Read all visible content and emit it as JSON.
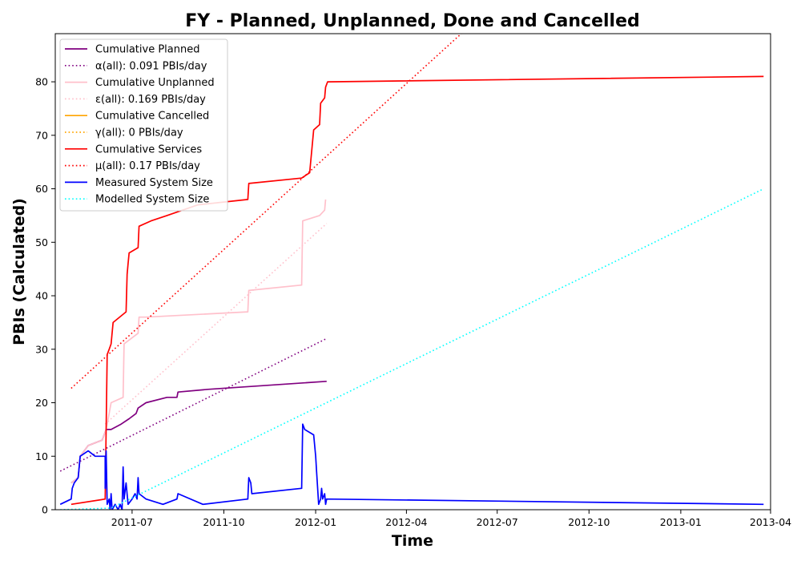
{
  "chart_data": {
    "type": "line",
    "title": "FY - Planned, Unplanned, Done  and Cancelled",
    "xlabel": "Time",
    "ylabel": "PBIs (Calculated)",
    "xlim": [
      "2011-04-15",
      "2013-04-01"
    ],
    "ylim": [
      0,
      89
    ],
    "x_ticks": [
      "2011-07-01",
      "2011-10-01",
      "2012-01-01",
      "2012-04-01",
      "2012-07-01",
      "2012-10-01",
      "2013-01-01",
      "2013-04-01"
    ],
    "x_tick_labels": [
      "2011-07",
      "2011-10",
      "2012-01",
      "2012-04",
      "2012-07",
      "2012-10",
      "2013-01",
      "2013-04"
    ],
    "y_ticks": [
      0,
      10,
      20,
      30,
      40,
      50,
      60,
      70,
      80
    ],
    "legend_position": "upper-left",
    "grid": false,
    "series": [
      {
        "name": "Cumulative Planned",
        "color": "#800080",
        "style": "solid",
        "points": [
          [
            "2011-05-01",
            5
          ],
          [
            "2011-05-08",
            6
          ],
          [
            "2011-05-10",
            10
          ],
          [
            "2011-05-14",
            11
          ],
          [
            "2011-05-18",
            12
          ],
          [
            "2011-06-01",
            13
          ],
          [
            "2011-06-05",
            15
          ],
          [
            "2011-06-10",
            15
          ],
          [
            "2011-06-20",
            16
          ],
          [
            "2011-06-28",
            17
          ],
          [
            "2011-07-05",
            18
          ],
          [
            "2011-07-07",
            19
          ],
          [
            "2011-07-15",
            20
          ],
          [
            "2011-08-05",
            21
          ],
          [
            "2011-08-15",
            21
          ],
          [
            "2011-08-16",
            22
          ],
          [
            "2011-09-15",
            22.5
          ],
          [
            "2012-01-12",
            24
          ]
        ]
      },
      {
        "name": "α(all): 0.091 PBIs/day",
        "color": "#800080",
        "style": "dotted",
        "points": [
          [
            "2011-04-20",
            7.2
          ],
          [
            "2012-01-12",
            32
          ]
        ]
      },
      {
        "name": "Cumulative Unplanned",
        "color": "#ffc0cb",
        "style": "solid",
        "points": [
          [
            "2011-05-01",
            5
          ],
          [
            "2011-05-08",
            6
          ],
          [
            "2011-05-10",
            10
          ],
          [
            "2011-05-14",
            11
          ],
          [
            "2011-05-18",
            12
          ],
          [
            "2011-06-01",
            13
          ],
          [
            "2011-06-05",
            15
          ],
          [
            "2011-06-06",
            16
          ],
          [
            "2011-06-08",
            18
          ],
          [
            "2011-06-10",
            20
          ],
          [
            "2011-06-22",
            21
          ],
          [
            "2011-06-23",
            31
          ],
          [
            "2011-07-07",
            33
          ],
          [
            "2011-07-08",
            36
          ],
          [
            "2011-07-15",
            36
          ],
          [
            "2011-10-25",
            37
          ],
          [
            "2011-10-26",
            41
          ],
          [
            "2011-12-18",
            42
          ],
          [
            "2011-12-19",
            54
          ],
          [
            "2012-01-05",
            55
          ],
          [
            "2012-01-10",
            56
          ],
          [
            "2012-01-11",
            58
          ]
        ]
      },
      {
        "name": "ε(all): 0.169 PBIs/day",
        "color": "#ffc0cb",
        "style": "dotted",
        "points": [
          [
            "2011-06-04",
            16
          ],
          [
            "2012-01-12",
            53.5
          ]
        ]
      },
      {
        "name": "Cumulative Cancelled",
        "color": "#ffa500",
        "style": "solid",
        "points": []
      },
      {
        "name": "γ(all): 0 PBIs/day",
        "color": "#ffa500",
        "style": "dotted",
        "points": []
      },
      {
        "name": "Cumulative Services",
        "color": "#ff0000",
        "style": "solid",
        "points": [
          [
            "2011-05-01",
            1
          ],
          [
            "2011-06-04",
            2
          ],
          [
            "2011-06-05",
            15
          ],
          [
            "2011-06-06",
            29
          ],
          [
            "2011-06-08",
            30
          ],
          [
            "2011-06-10",
            31
          ],
          [
            "2011-06-12",
            35
          ],
          [
            "2011-06-25",
            37
          ],
          [
            "2011-06-26",
            44
          ],
          [
            "2011-06-27",
            46
          ],
          [
            "2011-06-28",
            48
          ],
          [
            "2011-07-07",
            49
          ],
          [
            "2011-07-08",
            53
          ],
          [
            "2011-07-20",
            54
          ],
          [
            "2011-08-05",
            55
          ],
          [
            "2011-09-05",
            57
          ],
          [
            "2011-10-25",
            58
          ],
          [
            "2011-10-26",
            61
          ],
          [
            "2011-12-18",
            62
          ],
          [
            "2011-12-26",
            63
          ],
          [
            "2011-12-28",
            67
          ],
          [
            "2011-12-30",
            71
          ],
          [
            "2012-01-05",
            72
          ],
          [
            "2012-01-06",
            76
          ],
          [
            "2012-01-10",
            77
          ],
          [
            "2012-01-11",
            79
          ],
          [
            "2012-01-13",
            80
          ],
          [
            "2013-03-25",
            81
          ]
        ]
      },
      {
        "name": "μ(all): 0.17 PBIs/day",
        "color": "#ff0000",
        "style": "dotted",
        "points": [
          [
            "2011-05-01",
            22.7
          ],
          [
            "2012-05-26",
            89
          ]
        ]
      },
      {
        "name": "Measured System Size",
        "color": "#0000ff",
        "style": "solid",
        "points": [
          [
            "2011-04-20",
            1
          ],
          [
            "2011-05-01",
            2
          ],
          [
            "2011-05-02",
            4
          ],
          [
            "2011-05-04",
            5
          ],
          [
            "2011-05-08",
            6
          ],
          [
            "2011-05-10",
            10
          ],
          [
            "2011-05-18",
            11
          ],
          [
            "2011-05-25",
            10
          ],
          [
            "2011-06-04",
            10
          ],
          [
            "2011-06-04",
            4
          ],
          [
            "2011-06-05",
            11
          ],
          [
            "2011-06-06",
            1
          ],
          [
            "2011-06-08",
            2
          ],
          [
            "2011-06-09",
            0
          ],
          [
            "2011-06-10",
            3
          ],
          [
            "2011-06-11",
            0
          ],
          [
            "2011-06-14",
            1
          ],
          [
            "2011-06-17",
            0
          ],
          [
            "2011-06-19",
            1
          ],
          [
            "2011-06-21",
            0
          ],
          [
            "2011-06-22",
            8
          ],
          [
            "2011-06-23",
            2
          ],
          [
            "2011-06-25",
            5
          ],
          [
            "2011-06-27",
            1
          ],
          [
            "2011-07-01",
            2
          ],
          [
            "2011-07-04",
            3
          ],
          [
            "2011-07-06",
            2
          ],
          [
            "2011-07-07",
            6
          ],
          [
            "2011-07-08",
            3
          ],
          [
            "2011-07-15",
            2
          ],
          [
            "2011-08-01",
            1
          ],
          [
            "2011-08-15",
            2
          ],
          [
            "2011-08-16",
            3
          ],
          [
            "2011-09-10",
            1
          ],
          [
            "2011-10-25",
            2
          ],
          [
            "2011-10-26",
            6
          ],
          [
            "2011-10-28",
            5
          ],
          [
            "2011-10-29",
            3
          ],
          [
            "2011-12-18",
            4
          ],
          [
            "2011-12-19",
            16
          ],
          [
            "2011-12-21",
            15
          ],
          [
            "2011-12-30",
            14
          ],
          [
            "2012-01-01",
            10
          ],
          [
            "2012-01-02",
            7
          ],
          [
            "2012-01-04",
            1
          ],
          [
            "2012-01-06",
            2
          ],
          [
            "2012-01-07",
            4
          ],
          [
            "2012-01-08",
            2
          ],
          [
            "2012-01-10",
            3
          ],
          [
            "2012-01-11",
            1
          ],
          [
            "2012-01-12",
            2
          ],
          [
            "2013-03-25",
            1
          ]
        ]
      },
      {
        "name": "Modelled System Size",
        "color": "#00ffff",
        "style": "dotted",
        "points": [
          [
            "2011-04-20",
            0
          ],
          [
            "2011-06-10",
            0.3
          ],
          [
            "2013-03-25",
            60
          ]
        ]
      }
    ]
  }
}
